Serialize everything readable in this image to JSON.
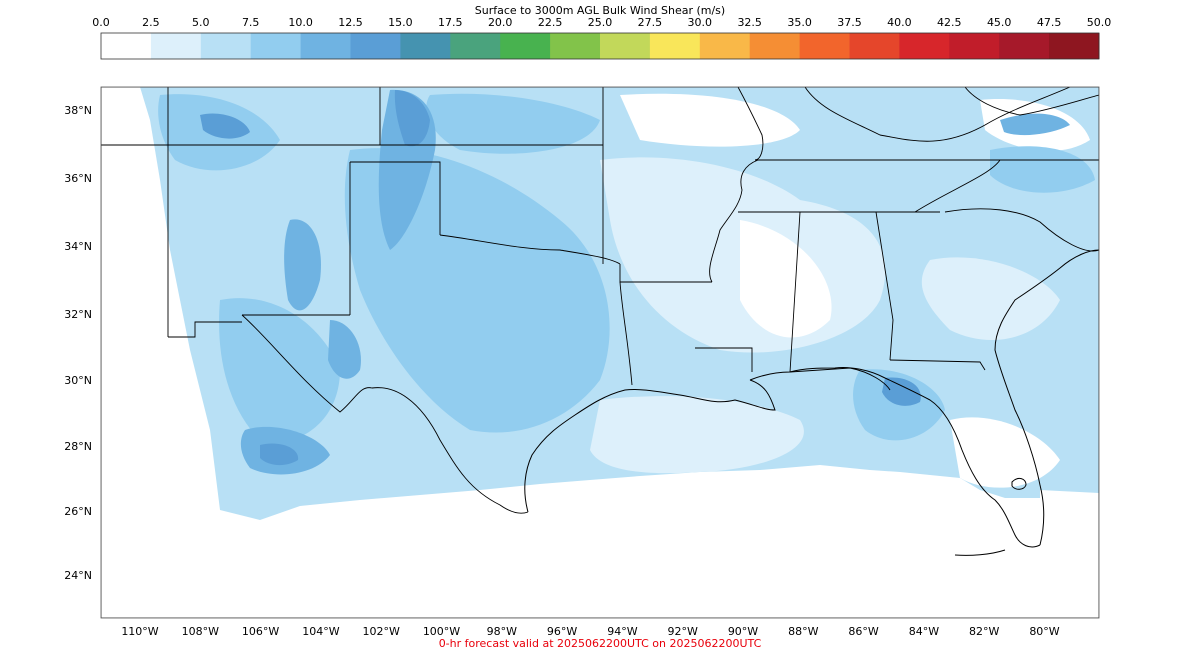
{
  "title": "Surface to 3000m AGL Bulk Wind Shear (m/s)",
  "footer": "0-hr forecast valid at 2025062200UTC on 2025062200UTC",
  "footer_color": "#e8000b",
  "colorbar": {
    "ticks": [
      "0.0",
      "2.5",
      "5.0",
      "7.5",
      "10.0",
      "12.5",
      "15.0",
      "17.5",
      "20.0",
      "22.5",
      "25.0",
      "27.5",
      "30.0",
      "32.5",
      "35.0",
      "37.5",
      "40.0",
      "42.5",
      "45.0",
      "47.5",
      "50.0"
    ],
    "colors": [
      "#ffffff",
      "#ddf0fb",
      "#b8e0f5",
      "#92cdef",
      "#6fb3e2",
      "#5a9ed6",
      "#4593b0",
      "#4aa37d",
      "#48b24f",
      "#82c34a",
      "#c2d85a",
      "#f9e65a",
      "#f9b848",
      "#f58e34",
      "#f2652c",
      "#e5462b",
      "#d7262b",
      "#c11d2a",
      "#a6192a",
      "#8e1620"
    ]
  },
  "map": {
    "x_ticks": [
      "110°W",
      "108°W",
      "106°W",
      "104°W",
      "102°W",
      "100°W",
      "98°W",
      "96°W",
      "94°W",
      "92°W",
      "90°W",
      "88°W",
      "86°W",
      "84°W",
      "82°W",
      "80°W"
    ],
    "y_ticks": [
      "38°N",
      "36°N",
      "34°N",
      "32°N",
      "30°N",
      "28°N",
      "26°N",
      "24°N"
    ],
    "shade_colors": {
      "lightest": "#ddf0fb",
      "light": "#b8e0f5",
      "medium": "#92cdef",
      "dark": "#6fb3e2",
      "darker": "#5a9ed6"
    }
  }
}
